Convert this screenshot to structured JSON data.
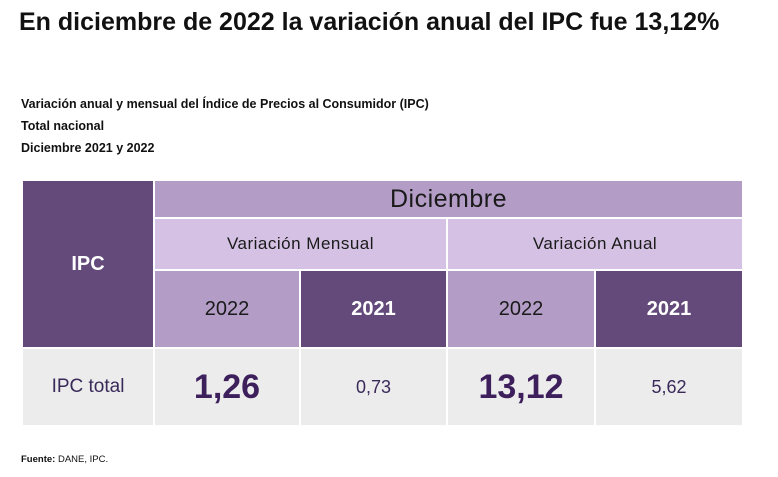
{
  "headline": "En diciembre de 2022 la variación anual del IPC fue 13,12%",
  "subtitle": {
    "line1": "Variación anual y mensual del Índice de Precios al Consumidor (IPC)",
    "line2": "Total nacional",
    "line3": "Diciembre 2021 y 2022"
  },
  "table": {
    "row_header": "IPC",
    "month_header": "Diciembre",
    "groups": {
      "monthly": "Variación Mensual",
      "annual": "Variación Anual"
    },
    "years": {
      "monthly_current": "2022",
      "monthly_previous": "2021",
      "annual_current": "2022",
      "annual_previous": "2021"
    },
    "row": {
      "label": "IPC total",
      "monthly_2022": "1,26",
      "monthly_2021": "0,73",
      "annual_2022": "13,12",
      "annual_2021": "5,62"
    }
  },
  "source": {
    "label": "Fuente:",
    "text": "DANE, IPC."
  },
  "colors": {
    "dark_purple": "#634a7b",
    "mid_purple": "#b39dc6",
    "light_purple": "#d4c1e3",
    "grey_row": "#ececec",
    "value_text": "#3d1f5c"
  }
}
